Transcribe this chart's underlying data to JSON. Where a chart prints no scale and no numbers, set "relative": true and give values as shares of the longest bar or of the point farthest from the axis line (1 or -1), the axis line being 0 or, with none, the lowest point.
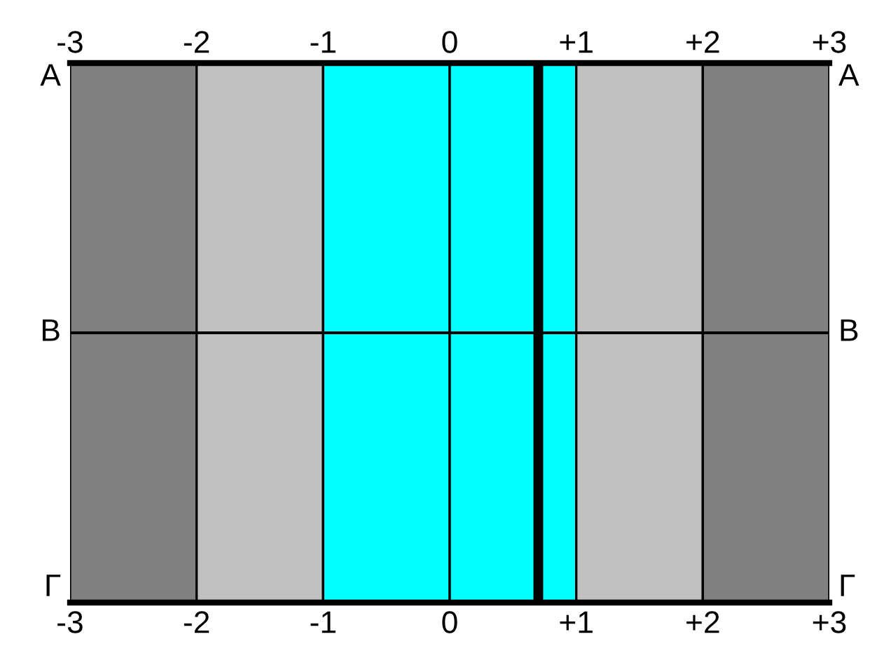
{
  "chart_data": {
    "type": "line",
    "relative": true,
    "series": [
      {
        "x": [
          0.7,
          0.7
        ],
        "values": [
          0,
          1
        ],
        "color": "#000000"
      }
    ],
    "xlim": [
      -3,
      3
    ],
    "xticks": [
      {
        "value": -3,
        "label": "-3"
      },
      {
        "value": -2,
        "label": "-2"
      },
      {
        "value": -1,
        "label": "-1"
      },
      {
        "value": 0,
        "label": "0"
      },
      {
        "value": 1,
        "label": "+1"
      },
      {
        "value": 2,
        "label": "+2"
      },
      {
        "value": 3,
        "label": "+3"
      }
    ],
    "x2lim": [
      -3,
      3
    ],
    "x2ticks": [
      {
        "value": -3,
        "label": "-3"
      },
      {
        "value": -2,
        "label": "-2"
      },
      {
        "value": -1,
        "label": "-1"
      },
      {
        "value": 0,
        "label": "0"
      },
      {
        "value": 1,
        "label": "+1"
      },
      {
        "value": 2,
        "label": "+2"
      },
      {
        "value": 3,
        "label": "+3"
      }
    ],
    "bands": [
      {
        "axis": "x",
        "from": -3,
        "to": -2,
        "color": "#808080"
      },
      {
        "axis": "x",
        "from": -2,
        "to": -1,
        "color": "#c0c0c0"
      },
      {
        "axis": "x",
        "from": -1,
        "to": 0,
        "color": "#00ffff"
      },
      {
        "axis": "x",
        "from": 0,
        "to": 1,
        "color": "#00ffff"
      },
      {
        "axis": "x",
        "from": 1,
        "to": 2,
        "color": "#c0c0c0"
      },
      {
        "axis": "x",
        "from": 2,
        "to": 3,
        "color": "#808080"
      }
    ],
    "ref_lines": [
      {
        "axis": "y",
        "value": 0.5,
        "color": "#000000"
      }
    ],
    "annotations": [
      "А",
      "В",
      "Г",
      "А",
      "В",
      "Г"
    ],
    "tick_labels": "x"
  }
}
